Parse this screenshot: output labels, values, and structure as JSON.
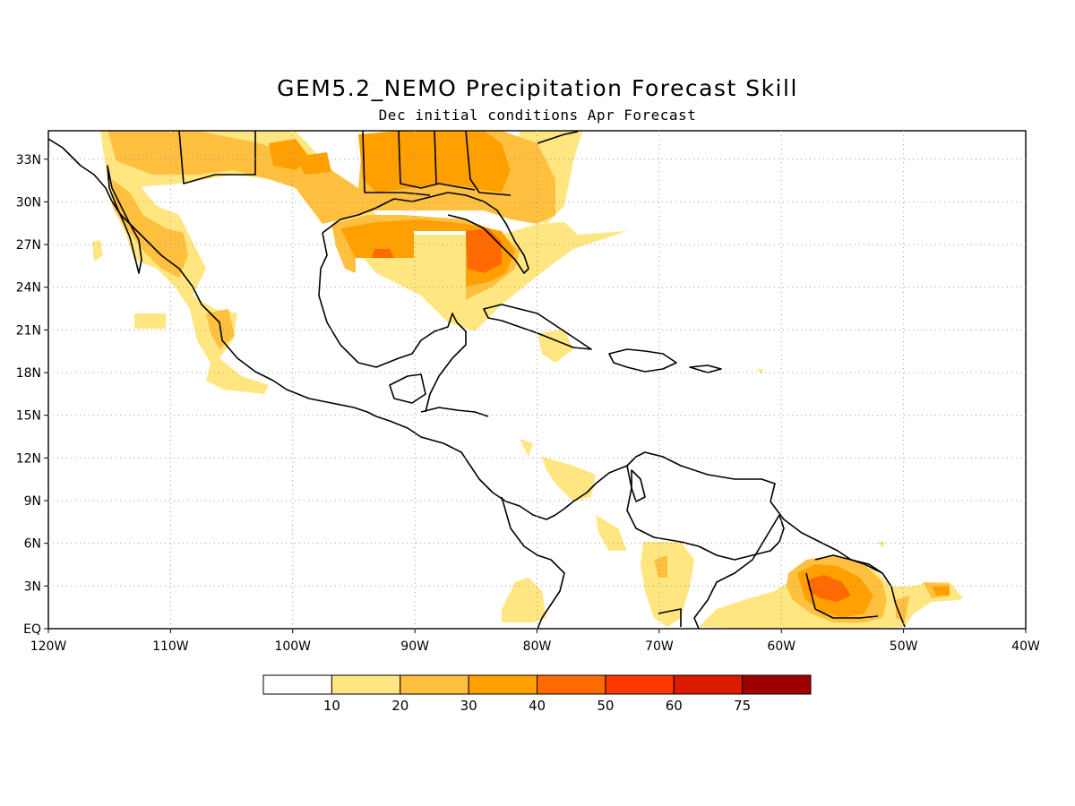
{
  "title": "GEM5.2_NEMO Precipitation Forecast Skill",
  "subtitle": "Dec initial conditions  Apr Forecast",
  "map": {
    "region": "Central America and Caribbean",
    "lon_range": [
      -120,
      -40
    ],
    "lat_range": [
      0,
      35
    ],
    "grid": "dotted",
    "lat_labels": [
      "33N",
      "30N",
      "27N",
      "24N",
      "21N",
      "18N",
      "15N",
      "12N",
      "9N",
      "6N",
      "3N",
      "EQ"
    ],
    "lon_labels": [
      "120W",
      "110W",
      "100W",
      "90W",
      "80W",
      "70W",
      "60W",
      "50W",
      "40W"
    ]
  },
  "colorbar": {
    "colors": [
      "#ffffff",
      "#ffe680",
      "#ffc040",
      "#ffa000",
      "#ff6a00",
      "#ff3800",
      "#dc1a00",
      "#a00000"
    ],
    "labels": [
      "10",
      "20",
      "30",
      "40",
      "50",
      "60",
      "75"
    ]
  }
}
